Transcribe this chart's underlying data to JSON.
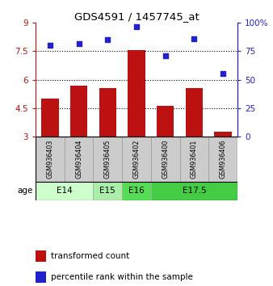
{
  "title": "GDS4591 / 1457745_at",
  "samples": [
    "GSM936403",
    "GSM936404",
    "GSM936405",
    "GSM936402",
    "GSM936400",
    "GSM936401",
    "GSM936406"
  ],
  "bar_values": [
    5.0,
    5.7,
    5.55,
    7.55,
    4.6,
    5.55,
    3.25
  ],
  "scatter_values": [
    80,
    82,
    85,
    97,
    71,
    86,
    55
  ],
  "bar_color": "#bb1111",
  "scatter_color": "#2222cc",
  "ylim_left": [
    3,
    9
  ],
  "ylim_right": [
    0,
    100
  ],
  "yticks_left": [
    3,
    4.5,
    6,
    7.5,
    9
  ],
  "yticks_right": [
    0,
    25,
    50,
    75,
    100
  ],
  "ytick_labels_left": [
    "3",
    "4.5",
    "6",
    "7.5",
    "9"
  ],
  "ytick_labels_right": [
    "0",
    "25",
    "50",
    "75",
    "100%"
  ],
  "hlines": [
    4.5,
    6.0,
    7.5
  ],
  "age_groups": [
    {
      "label": "E14",
      "start": 0,
      "end": 1,
      "color": "#ccffcc"
    },
    {
      "label": "E15",
      "start": 2,
      "end": 2,
      "color": "#aaeeaa"
    },
    {
      "label": "E16",
      "start": 3,
      "end": 3,
      "color": "#66dd66"
    },
    {
      "label": "E17.5",
      "start": 4,
      "end": 6,
      "color": "#44cc44"
    }
  ],
  "legend_bar_label": "transformed count",
  "legend_scatter_label": "percentile rank within the sample",
  "age_label": "age",
  "bar_bottom": 3,
  "sample_bg": "#cccccc",
  "sample_border": "#999999"
}
